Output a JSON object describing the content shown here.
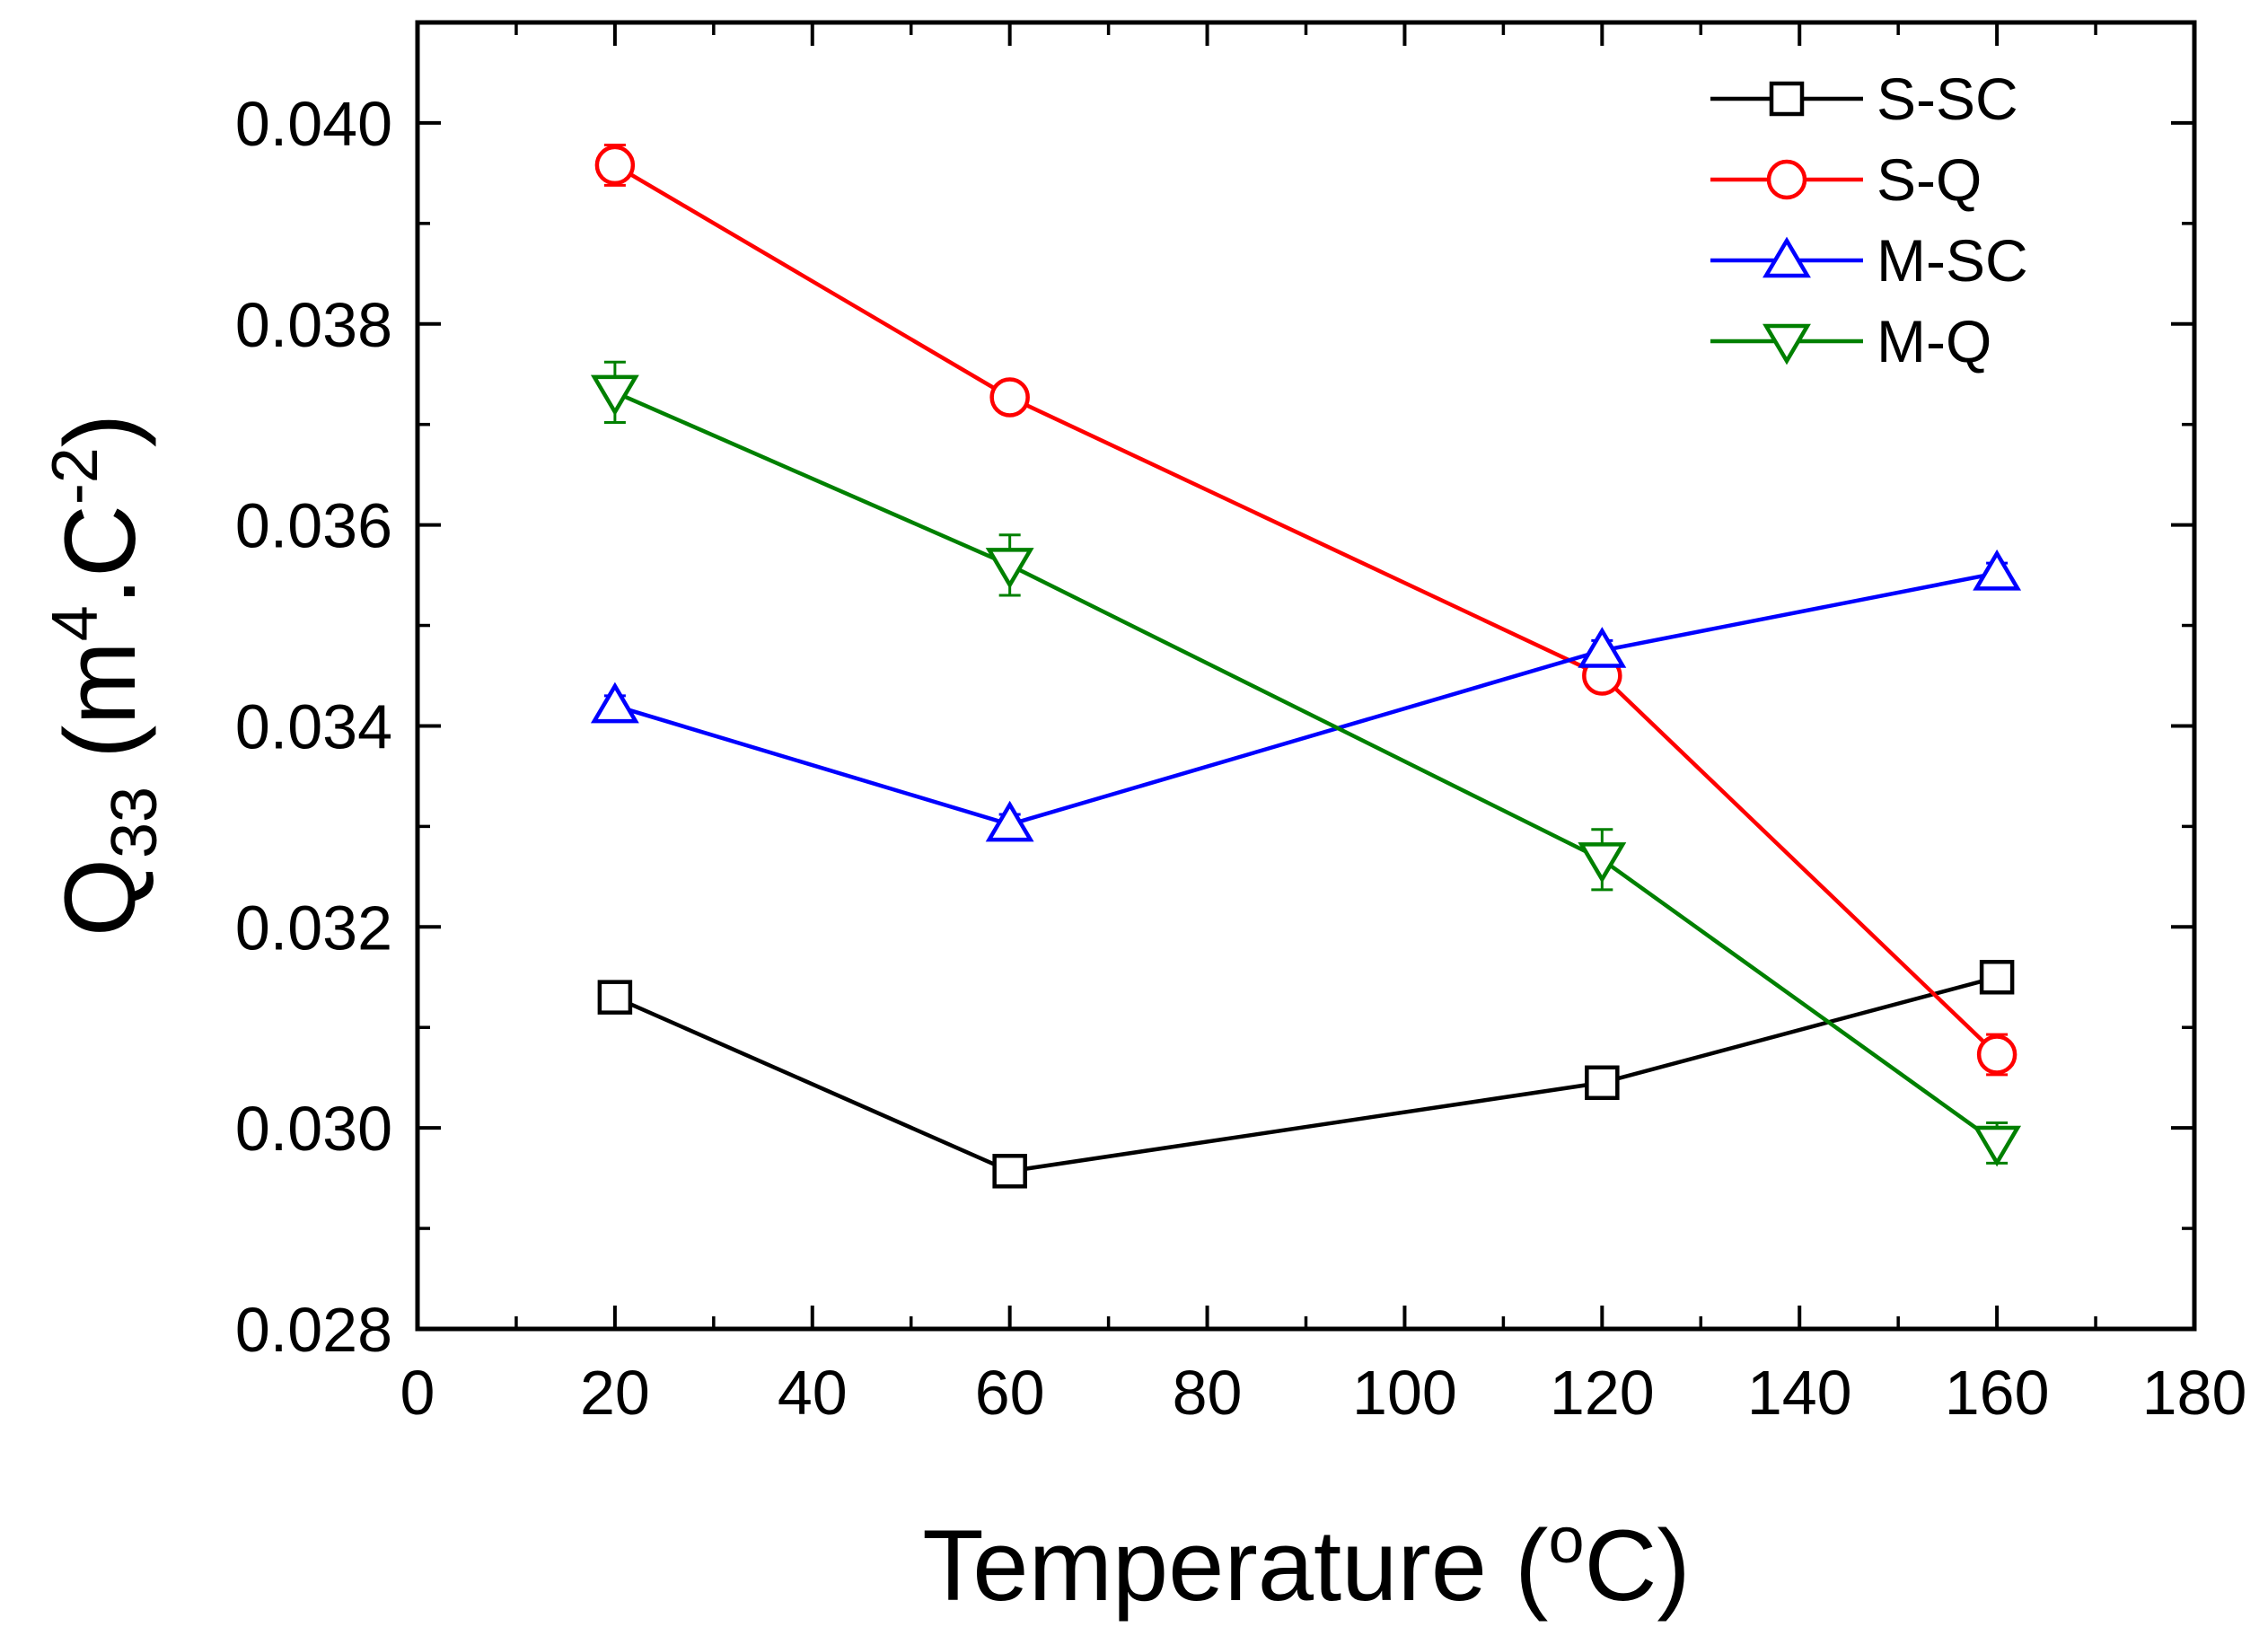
{
  "chart_data": {
    "type": "line",
    "title": "",
    "xlabel": "Temperature (oC)",
    "xlabel_parts": {
      "main": "Temperature (",
      "sup": "o",
      "end": "C)"
    },
    "ylabel": "Q33 (m4.C-2)",
    "ylabel_parts": {
      "q": "Q",
      "sub": "33",
      "open": " (m",
      "sup1": "4",
      "mid": ".C",
      "sup2": "-2",
      "close": ")"
    },
    "xlim": [
      0,
      180
    ],
    "ylim": [
      0.028,
      0.041
    ],
    "xticks": [
      0,
      20,
      40,
      60,
      80,
      100,
      120,
      140,
      160,
      180
    ],
    "xtick_labels": [
      "0",
      "20",
      "40",
      "60",
      "80",
      "100",
      "120",
      "140",
      "160",
      "180"
    ],
    "yticks": [
      0.028,
      0.03,
      0.032,
      0.034,
      0.036,
      0.038,
      0.04
    ],
    "ytick_labels": [
      "0.028",
      "0.030",
      "0.032",
      "0.034",
      "0.036",
      "0.038",
      "0.040"
    ],
    "grid": false,
    "legend_position": "top-right",
    "x": [
      20,
      60,
      120,
      160
    ],
    "series": [
      {
        "name": "S-SC",
        "color": "#000000",
        "marker": "square",
        "values": [
          0.0313,
          0.02957,
          0.03045,
          0.0315
        ],
        "errors": [
          0.0001,
          0.0001,
          0.0001,
          0.0001
        ]
      },
      {
        "name": "S-Q",
        "color": "#ff0000",
        "marker": "circle",
        "values": [
          0.03958,
          0.03727,
          0.0345,
          0.03073
        ],
        "errors": [
          0.0002,
          0.0001,
          0.0001,
          0.0002
        ]
      },
      {
        "name": "M-SC",
        "color": "#0000ff",
        "marker": "triangle-up",
        "values": [
          0.0342,
          0.03302,
          0.03475,
          0.03552
        ],
        "errors": [
          0.0001,
          0.0001,
          0.0001,
          0.0001
        ]
      },
      {
        "name": "M-Q",
        "color": "#008000",
        "marker": "triangle-down",
        "values": [
          0.03732,
          0.0356,
          0.03267,
          0.02985
        ],
        "errors": [
          0.0003,
          0.0003,
          0.0003,
          0.0002
        ]
      }
    ]
  }
}
